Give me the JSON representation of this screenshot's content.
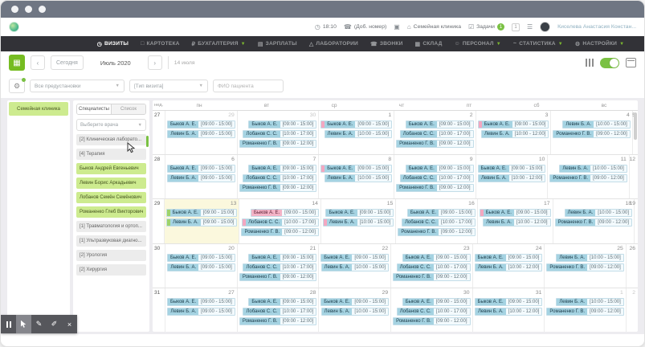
{
  "topbar": {
    "time": "18:10",
    "phone": "(Доб. номер)",
    "clinic": "Семейная клиника",
    "tasks_label": "Задачи",
    "tasks_badge": "1",
    "counter": "1",
    "user_name": "Киселева Анастасия Констан..."
  },
  "nav": {
    "items": [
      {
        "label": "ВИЗИТЫ",
        "icon": "visits-icon",
        "glyph": "◷",
        "active": true,
        "dropdown": false
      },
      {
        "label": "КАРТОТЕКА",
        "icon": "card-index-icon",
        "glyph": "□",
        "active": false,
        "dropdown": false
      },
      {
        "label": "БУХГАЛТЕРИЯ",
        "icon": "accounting-icon",
        "glyph": "₽",
        "active": false,
        "dropdown": true
      },
      {
        "label": "ЗАРПЛАТЫ",
        "icon": "salary-icon",
        "glyph": "▤",
        "active": false,
        "dropdown": false
      },
      {
        "label": "ЛАБОРАТОРИИ",
        "icon": "lab-icon",
        "glyph": "△",
        "active": false,
        "dropdown": false
      },
      {
        "label": "ЗВОНКИ",
        "icon": "calls-icon",
        "glyph": "☎",
        "active": false,
        "dropdown": false
      },
      {
        "label": "СКЛАД",
        "icon": "warehouse-icon",
        "glyph": "▦",
        "active": false,
        "dropdown": false
      },
      {
        "label": "ПЕРСОНАЛ",
        "icon": "staff-icon",
        "glyph": "☺",
        "active": false,
        "dropdown": true
      },
      {
        "label": "СТАТИСТИКА",
        "icon": "stats-icon",
        "glyph": "~",
        "active": false,
        "dropdown": true
      },
      {
        "label": "НАСТРОЙКИ",
        "icon": "settings-icon",
        "glyph": "⚙",
        "active": false,
        "dropdown": true
      }
    ]
  },
  "toolbar": {
    "today_label": "Сегодня",
    "month_label": "Июль 2020",
    "date_info": "14 июля"
  },
  "filters": {
    "preset": "Все предустановки",
    "visit_type": "[Тип визита]",
    "patient_placeholder": "ФИО пациента"
  },
  "clinics": {
    "selected": "Семейная клиника"
  },
  "doctors_panel": {
    "tabs": [
      "Специалисты",
      "Список"
    ],
    "active_tab": 0,
    "select_placeholder": "Выберите врача",
    "items": [
      {
        "label": "[2] Клиническая лаборато...",
        "type": "specialty"
      },
      {
        "label": "[4] Терапия",
        "type": "specialty"
      },
      {
        "label": "Быков Андрей Евгеньевич",
        "type": "doctor"
      },
      {
        "label": "Левин Борис Аркадьевич",
        "type": "doctor"
      },
      {
        "label": "Лобанов Семён Семёнович",
        "type": "doctor"
      },
      {
        "label": "Романенко Глеб Викторович",
        "type": "doctor"
      },
      {
        "label": "[1] Травматология и ортоп...",
        "type": "specialty"
      },
      {
        "label": "[1] Ультразвуковая диагно...",
        "type": "specialty"
      },
      {
        "label": "[2] Урология",
        "type": "specialty"
      },
      {
        "label": "[2] Хирургия",
        "type": "specialty"
      }
    ]
  },
  "calendar": {
    "week_col_label": "нед.",
    "day_headers": [
      "пн",
      "вт",
      "ср",
      "чт",
      "пт",
      "сб",
      "вс"
    ],
    "weeks": [
      {
        "num": 27,
        "days": [
          {
            "d": 29,
            "out": 1,
            "ev": [
              [
                "Быков А. Е.",
                "[09:00 - 15:00]"
              ],
              [
                "Левин Б. А.",
                "[09:00 - 15:00]"
              ]
            ]
          },
          {
            "d": 30,
            "out": 1,
            "ev": [
              [
                "Быков А. Е.",
                "[09:00 - 15:00]"
              ],
              [
                "Лобанов С. С.",
                "[10:00 - 17:00]"
              ],
              [
                "Романенко Г. В.",
                "[09:00 - 12:00]"
              ]
            ]
          },
          {
            "d": 1,
            "ev": [
              [
                "Быков А. Е.",
                "[09:00 - 15:00]",
                "p"
              ],
              [
                "Левин Б. А.",
                "[10:00 - 15:00]"
              ]
            ]
          },
          {
            "d": 2,
            "ev": [
              [
                "Быков А. Е.",
                "[09:00 - 15:00]"
              ],
              [
                "Лобанов С. С.",
                "[10:00 - 17:00]"
              ],
              [
                "Романенко Г. В.",
                "[09:00 - 12:00]"
              ]
            ]
          },
          {
            "d": 3,
            "ev": [
              [
                "Быков А. Е.",
                "[09:00 - 15:00]",
                "p"
              ],
              [
                "Левин Б. А.",
                "[10:00 - 12:00]"
              ]
            ]
          },
          {
            "d": 4,
            "ev": [
              [
                "Левин Б. А.",
                "[10:00 - 15:00]"
              ],
              [
                "Романенко Г. В.",
                "[09:00 - 12:00]"
              ]
            ]
          },
          {
            "d": 5,
            "ev": []
          }
        ]
      },
      {
        "num": 28,
        "days": [
          {
            "d": 6,
            "ev": [
              [
                "Быков А. Е.",
                "[09:00 - 15:00]"
              ],
              [
                "Левин Б. А.",
                "[09:00 - 15:00]"
              ]
            ]
          },
          {
            "d": 7,
            "ev": [
              [
                "Быков А. Е.",
                "[09:00 - 15:00]"
              ],
              [
                "Лобанов С. С.",
                "[10:00 - 17:00]"
              ],
              [
                "Романенко Г. В.",
                "[09:00 - 12:00]"
              ]
            ]
          },
          {
            "d": 8,
            "ev": [
              [
                "Быков А. Е.",
                "[09:00 - 15:00]",
                "p"
              ],
              [
                "Левин Б. А.",
                "[10:00 - 15:00]"
              ]
            ]
          },
          {
            "d": 9,
            "ev": [
              [
                "Быков А. Е.",
                "[09:00 - 15:00]"
              ],
              [
                "Лобанов С. С.",
                "[10:00 - 17:00]"
              ],
              [
                "Романенко Г. В.",
                "[09:00 - 12:00]"
              ]
            ]
          },
          {
            "d": 10,
            "ev": [
              [
                "Быков А. Е.",
                "[09:00 - 15:00]"
              ],
              [
                "Левин Б. А.",
                "[10:00 - 12:00]"
              ]
            ]
          },
          {
            "d": 11,
            "ev": [
              [
                "Левин Б. А.",
                "[10:00 - 15:00]"
              ],
              [
                "Романенко Г. В.",
                "[09:00 - 12:00]"
              ]
            ]
          },
          {
            "d": 12,
            "ev": []
          }
        ]
      },
      {
        "num": 29,
        "days": [
          {
            "d": 13,
            "hl": 1,
            "ev": [
              [
                "Быков А. Е.",
                "[09:00 - 15:00]",
                "g"
              ],
              [
                "Левин Б. А.",
                "[09:00 - 15:00]",
                "g"
              ]
            ]
          },
          {
            "d": 14,
            "ev": [
              [
                "Быков А. Е.",
                "[09:00 - 15:00]",
                "P"
              ],
              [
                "Лобанов С. С.",
                "[10:00 - 17:00]",
                "p"
              ],
              [
                "Романенко Г. В.",
                "[09:00 - 12:00]"
              ]
            ]
          },
          {
            "d": 15,
            "ev": [
              [
                "Быков А. Е.",
                "[09:00 - 15:00]"
              ],
              [
                "Левин Б. А.",
                "[10:00 - 15:00]",
                "p"
              ]
            ]
          },
          {
            "d": 16,
            "ev": [
              [
                "Быков А. Е.",
                "[09:00 - 15:00]"
              ],
              [
                "Лобанов С. С.",
                "[10:00 - 17:00]"
              ],
              [
                "Романенко Г. В.",
                "[09:00 - 12:00]"
              ]
            ]
          },
          {
            "d": 17,
            "ev": [
              [
                "Быков А. Е.",
                "[09:00 - 15:00]",
                "p"
              ],
              [
                "Левин Б. А.",
                "[10:00 - 12:00]"
              ]
            ]
          },
          {
            "d": 18,
            "ev": [
              [
                "Левин Б. А.",
                "[10:00 - 15:00]"
              ],
              [
                "Романенко Г. В.",
                "[09:00 - 12:00]"
              ]
            ]
          },
          {
            "d": 19,
            "ev": []
          }
        ]
      },
      {
        "num": 30,
        "days": [
          {
            "d": 20,
            "ev": [
              [
                "Быков А. Е.",
                "[09:00 - 15:00]"
              ],
              [
                "Левин Б. А.",
                "[09:00 - 15:00]"
              ]
            ]
          },
          {
            "d": 21,
            "ev": [
              [
                "Быков А. Е.",
                "[09:00 - 15:00]"
              ],
              [
                "Лобанов С. С.",
                "[10:00 - 17:00]"
              ],
              [
                "Романенко Г. В.",
                "[09:00 - 12:00]"
              ]
            ]
          },
          {
            "d": 22,
            "ev": [
              [
                "Быков А. Е.",
                "[09:00 - 15:00]"
              ],
              [
                "Левин Б. А.",
                "[10:00 - 15:00]"
              ]
            ]
          },
          {
            "d": 23,
            "ev": [
              [
                "Быков А. Е.",
                "[09:00 - 15:00]"
              ],
              [
                "Лобанов С. С.",
                "[10:00 - 17:00]"
              ],
              [
                "Романенко Г. В.",
                "[09:00 - 12:00]"
              ]
            ]
          },
          {
            "d": 24,
            "ev": [
              [
                "Быков А. Е.",
                "[09:00 - 15:00]"
              ],
              [
                "Левин Б. А.",
                "[10:00 - 12:00]"
              ]
            ]
          },
          {
            "d": 25,
            "ev": [
              [
                "Левин Б. А.",
                "[10:00 - 15:00]"
              ],
              [
                "Романенко Г. В.",
                "[09:00 - 12:00]"
              ]
            ]
          },
          {
            "d": 26,
            "ev": []
          }
        ]
      },
      {
        "num": 31,
        "days": [
          {
            "d": 27,
            "ev": [
              [
                "Быков А. Е.",
                "[09:00 - 15:00]"
              ],
              [
                "Левин Б. А.",
                "[09:00 - 15:00]"
              ]
            ]
          },
          {
            "d": 28,
            "ev": [
              [
                "Быков А. Е.",
                "[09:00 - 15:00]"
              ],
              [
                "Лобанов С. С.",
                "[10:00 - 17:00]"
              ],
              [
                "Романенко Г. В.",
                "[09:00 - 12:00]"
              ]
            ]
          },
          {
            "d": 29,
            "ev": [
              [
                "Быков А. Е.",
                "[09:00 - 15:00]"
              ],
              [
                "Левин Б. А.",
                "[10:00 - 15:00]"
              ]
            ]
          },
          {
            "d": 30,
            "ev": [
              [
                "Быков А. Е.",
                "[09:00 - 15:00]"
              ],
              [
                "Лобанов С. С.",
                "[10:00 - 17:00]"
              ],
              [
                "Романенко Г. В.",
                "[09:00 - 12:00]"
              ]
            ]
          },
          {
            "d": 31,
            "ev": [
              [
                "Быков А. Е.",
                "[09:00 - 15:00]"
              ],
              [
                "Левин Б. А.",
                "[10:00 - 12:00]"
              ]
            ]
          },
          {
            "d": 1,
            "out": 1,
            "ev": [
              [
                "Левин Б. А.",
                "[10:00 - 15:00]"
              ],
              [
                "Романенко Г. В.",
                "[09:00 - 12:00]"
              ]
            ]
          },
          {
            "d": 2,
            "out": 1,
            "ev": []
          }
        ]
      }
    ]
  },
  "annotation_toolbar": {
    "items": [
      {
        "name": "pause",
        "glyph": ""
      },
      {
        "name": "cursor",
        "glyph": "",
        "active": true
      },
      {
        "name": "pencil",
        "glyph": "✎"
      },
      {
        "name": "marker",
        "glyph": "✐"
      },
      {
        "name": "close",
        "glyph": "×"
      }
    ]
  },
  "colors": {
    "accent_green": "#7ac143",
    "chip_blue": "#a5d3e2",
    "chip_pink": "#f3b3c6",
    "list_green": "#cdeb8f",
    "today_yellow": "#fbf8dd",
    "nav_dark": "#323237",
    "titlebar_grey": "#6f7683"
  }
}
